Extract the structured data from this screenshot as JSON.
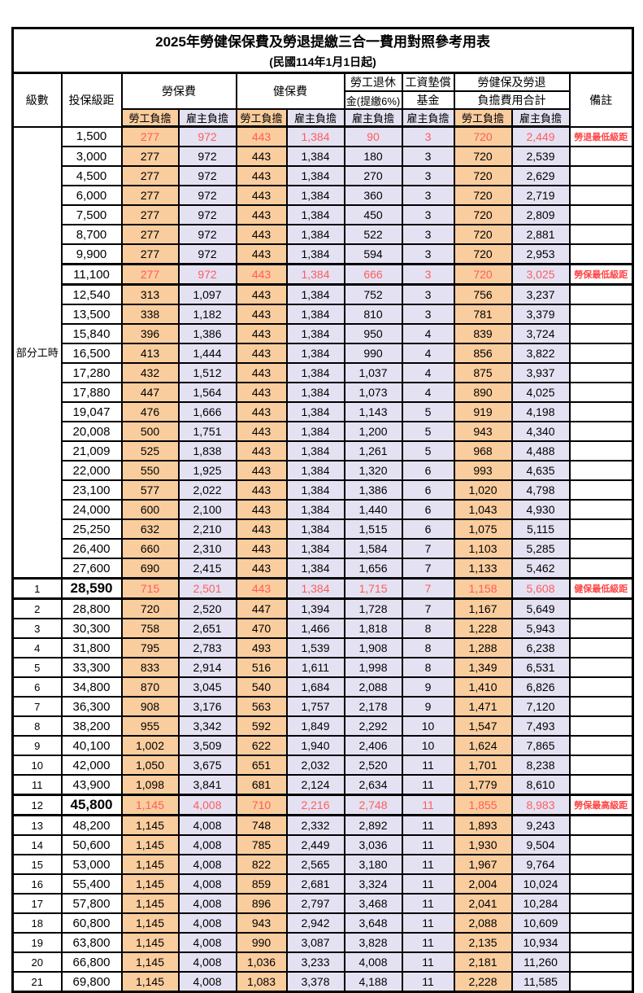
{
  "title": "2025年勞健保保費及勞退提繳三合一費用對照參考用表",
  "subtitle": "(民國114年1月1日起)",
  "colors": {
    "employee_column_bg": "#FACD9E",
    "employer_column_bg": "#E4E2F2",
    "highlight_text": "#FF5C5C",
    "remark_text": "#FF4545",
    "border": "#000000"
  },
  "header": {
    "level": "級數",
    "bracket": "投保級距",
    "labor_insurance": "勞保費",
    "health_insurance": "健保費",
    "pension_line1": "勞工退休",
    "pension_line2": "金(提繳6%)",
    "wage_fund_line1": "工資墊償",
    "wage_fund_line2": "基金",
    "total_line1": "勞健保及勞退",
    "total_line2": "負擔費用合計",
    "remark": "備註",
    "employee": "勞工負擔",
    "employer": "雇主負擔"
  },
  "part_time_label": "部分工時",
  "rows": [
    {
      "level": "",
      "bracket": "1,500",
      "labor_emp": "277",
      "labor_er": "972",
      "health_emp": "443",
      "health_er": "1,384",
      "pension": "90",
      "fund": "3",
      "total_emp": "720",
      "total_er": "2,449",
      "remark": "勞退最低級距",
      "hl": true,
      "thick": false,
      "big": false
    },
    {
      "level": "",
      "bracket": "3,000",
      "labor_emp": "277",
      "labor_er": "972",
      "health_emp": "443",
      "health_er": "1,384",
      "pension": "180",
      "fund": "3",
      "total_emp": "720",
      "total_er": "2,539",
      "remark": "",
      "hl": false,
      "thick": false,
      "big": false
    },
    {
      "level": "",
      "bracket": "4,500",
      "labor_emp": "277",
      "labor_er": "972",
      "health_emp": "443",
      "health_er": "1,384",
      "pension": "270",
      "fund": "3",
      "total_emp": "720",
      "total_er": "2,629",
      "remark": "",
      "hl": false,
      "thick": false,
      "big": false
    },
    {
      "level": "",
      "bracket": "6,000",
      "labor_emp": "277",
      "labor_er": "972",
      "health_emp": "443",
      "health_er": "1,384",
      "pension": "360",
      "fund": "3",
      "total_emp": "720",
      "total_er": "2,719",
      "remark": "",
      "hl": false,
      "thick": false,
      "big": false
    },
    {
      "level": "",
      "bracket": "7,500",
      "labor_emp": "277",
      "labor_er": "972",
      "health_emp": "443",
      "health_er": "1,384",
      "pension": "450",
      "fund": "3",
      "total_emp": "720",
      "total_er": "2,809",
      "remark": "",
      "hl": false,
      "thick": false,
      "big": false
    },
    {
      "level": "",
      "bracket": "8,700",
      "labor_emp": "277",
      "labor_er": "972",
      "health_emp": "443",
      "health_er": "1,384",
      "pension": "522",
      "fund": "3",
      "total_emp": "720",
      "total_er": "2,881",
      "remark": "",
      "hl": false,
      "thick": false,
      "big": false
    },
    {
      "level": "",
      "bracket": "9,900",
      "labor_emp": "277",
      "labor_er": "972",
      "health_emp": "443",
      "health_er": "1,384",
      "pension": "594",
      "fund": "3",
      "total_emp": "720",
      "total_er": "2,953",
      "remark": "",
      "hl": false,
      "thick": false,
      "big": false
    },
    {
      "level": "",
      "bracket": "11,100",
      "labor_emp": "277",
      "labor_er": "972",
      "health_emp": "443",
      "health_er": "1,384",
      "pension": "666",
      "fund": "3",
      "total_emp": "720",
      "total_er": "3,025",
      "remark": "勞保最低級距",
      "hl": true,
      "thick": true,
      "big": false
    },
    {
      "level": "",
      "bracket": "12,540",
      "labor_emp": "313",
      "labor_er": "1,097",
      "health_emp": "443",
      "health_er": "1,384",
      "pension": "752",
      "fund": "3",
      "total_emp": "756",
      "total_er": "3,237",
      "remark": "",
      "hl": false,
      "thick": false,
      "big": false
    },
    {
      "level": "",
      "bracket": "13,500",
      "labor_emp": "338",
      "labor_er": "1,182",
      "health_emp": "443",
      "health_er": "1,384",
      "pension": "810",
      "fund": "3",
      "total_emp": "781",
      "total_er": "3,379",
      "remark": "",
      "hl": false,
      "thick": false,
      "big": false
    },
    {
      "level": "",
      "bracket": "15,840",
      "labor_emp": "396",
      "labor_er": "1,386",
      "health_emp": "443",
      "health_er": "1,384",
      "pension": "950",
      "fund": "4",
      "total_emp": "839",
      "total_er": "3,724",
      "remark": "",
      "hl": false,
      "thick": false,
      "big": false
    },
    {
      "level": "",
      "bracket": "16,500",
      "labor_emp": "413",
      "labor_er": "1,444",
      "health_emp": "443",
      "health_er": "1,384",
      "pension": "990",
      "fund": "4",
      "total_emp": "856",
      "total_er": "3,822",
      "remark": "",
      "hl": false,
      "thick": false,
      "big": false
    },
    {
      "level": "",
      "bracket": "17,280",
      "labor_emp": "432",
      "labor_er": "1,512",
      "health_emp": "443",
      "health_er": "1,384",
      "pension": "1,037",
      "fund": "4",
      "total_emp": "875",
      "total_er": "3,937",
      "remark": "",
      "hl": false,
      "thick": false,
      "big": false
    },
    {
      "level": "",
      "bracket": "17,880",
      "labor_emp": "447",
      "labor_er": "1,564",
      "health_emp": "443",
      "health_er": "1,384",
      "pension": "1,073",
      "fund": "4",
      "total_emp": "890",
      "total_er": "4,025",
      "remark": "",
      "hl": false,
      "thick": false,
      "big": false
    },
    {
      "level": "",
      "bracket": "19,047",
      "labor_emp": "476",
      "labor_er": "1,666",
      "health_emp": "443",
      "health_er": "1,384",
      "pension": "1,143",
      "fund": "5",
      "total_emp": "919",
      "total_er": "4,198",
      "remark": "",
      "hl": false,
      "thick": false,
      "big": false
    },
    {
      "level": "",
      "bracket": "20,008",
      "labor_emp": "500",
      "labor_er": "1,751",
      "health_emp": "443",
      "health_er": "1,384",
      "pension": "1,200",
      "fund": "5",
      "total_emp": "943",
      "total_er": "4,340",
      "remark": "",
      "hl": false,
      "thick": false,
      "big": false
    },
    {
      "level": "",
      "bracket": "21,009",
      "labor_emp": "525",
      "labor_er": "1,838",
      "health_emp": "443",
      "health_er": "1,384",
      "pension": "1,261",
      "fund": "5",
      "total_emp": "968",
      "total_er": "4,488",
      "remark": "",
      "hl": false,
      "thick": false,
      "big": false
    },
    {
      "level": "",
      "bracket": "22,000",
      "labor_emp": "550",
      "labor_er": "1,925",
      "health_emp": "443",
      "health_er": "1,384",
      "pension": "1,320",
      "fund": "6",
      "total_emp": "993",
      "total_er": "4,635",
      "remark": "",
      "hl": false,
      "thick": false,
      "big": false
    },
    {
      "level": "",
      "bracket": "23,100",
      "labor_emp": "577",
      "labor_er": "2,022",
      "health_emp": "443",
      "health_er": "1,384",
      "pension": "1,386",
      "fund": "6",
      "total_emp": "1,020",
      "total_er": "4,798",
      "remark": "",
      "hl": false,
      "thick": false,
      "big": false
    },
    {
      "level": "",
      "bracket": "24,000",
      "labor_emp": "600",
      "labor_er": "2,100",
      "health_emp": "443",
      "health_er": "1,384",
      "pension": "1,440",
      "fund": "6",
      "total_emp": "1,043",
      "total_er": "4,930",
      "remark": "",
      "hl": false,
      "thick": false,
      "big": false
    },
    {
      "level": "",
      "bracket": "25,250",
      "labor_emp": "632",
      "labor_er": "2,210",
      "health_emp": "443",
      "health_er": "1,384",
      "pension": "1,515",
      "fund": "6",
      "total_emp": "1,075",
      "total_er": "5,115",
      "remark": "",
      "hl": false,
      "thick": false,
      "big": false
    },
    {
      "level": "",
      "bracket": "26,400",
      "labor_emp": "660",
      "labor_er": "2,310",
      "health_emp": "443",
      "health_er": "1,384",
      "pension": "1,584",
      "fund": "7",
      "total_emp": "1,103",
      "total_er": "5,285",
      "remark": "",
      "hl": false,
      "thick": false,
      "big": false
    },
    {
      "level": "",
      "bracket": "27,600",
      "labor_emp": "690",
      "labor_er": "2,415",
      "health_emp": "443",
      "health_er": "1,384",
      "pension": "1,656",
      "fund": "7",
      "total_emp": "1,133",
      "total_er": "5,462",
      "remark": "",
      "hl": false,
      "thick": false,
      "big": false
    },
    {
      "level": "1",
      "bracket": "28,590",
      "labor_emp": "715",
      "labor_er": "2,501",
      "health_emp": "443",
      "health_er": "1,384",
      "pension": "1,715",
      "fund": "7",
      "total_emp": "1,158",
      "total_er": "5,608",
      "remark": "健保最低級距",
      "hl": true,
      "thick": true,
      "big": true
    },
    {
      "level": "2",
      "bracket": "28,800",
      "labor_emp": "720",
      "labor_er": "2,520",
      "health_emp": "447",
      "health_er": "1,394",
      "pension": "1,728",
      "fund": "7",
      "total_emp": "1,167",
      "total_er": "5,649",
      "remark": "",
      "hl": false,
      "thick": false,
      "big": false
    },
    {
      "level": "3",
      "bracket": "30,300",
      "labor_emp": "758",
      "labor_er": "2,651",
      "health_emp": "470",
      "health_er": "1,466",
      "pension": "1,818",
      "fund": "8",
      "total_emp": "1,228",
      "total_er": "5,943",
      "remark": "",
      "hl": false,
      "thick": false,
      "big": false
    },
    {
      "level": "4",
      "bracket": "31,800",
      "labor_emp": "795",
      "labor_er": "2,783",
      "health_emp": "493",
      "health_er": "1,539",
      "pension": "1,908",
      "fund": "8",
      "total_emp": "1,288",
      "total_er": "6,238",
      "remark": "",
      "hl": false,
      "thick": false,
      "big": false
    },
    {
      "level": "5",
      "bracket": "33,300",
      "labor_emp": "833",
      "labor_er": "2,914",
      "health_emp": "516",
      "health_er": "1,611",
      "pension": "1,998",
      "fund": "8",
      "total_emp": "1,349",
      "total_er": "6,531",
      "remark": "",
      "hl": false,
      "thick": false,
      "big": false
    },
    {
      "level": "6",
      "bracket": "34,800",
      "labor_emp": "870",
      "labor_er": "3,045",
      "health_emp": "540",
      "health_er": "1,684",
      "pension": "2,088",
      "fund": "9",
      "total_emp": "1,410",
      "total_er": "6,826",
      "remark": "",
      "hl": false,
      "thick": false,
      "big": false
    },
    {
      "level": "7",
      "bracket": "36,300",
      "labor_emp": "908",
      "labor_er": "3,176",
      "health_emp": "563",
      "health_er": "1,757",
      "pension": "2,178",
      "fund": "9",
      "total_emp": "1,471",
      "total_er": "7,120",
      "remark": "",
      "hl": false,
      "thick": false,
      "big": false
    },
    {
      "level": "8",
      "bracket": "38,200",
      "labor_emp": "955",
      "labor_er": "3,342",
      "health_emp": "592",
      "health_er": "1,849",
      "pension": "2,292",
      "fund": "10",
      "total_emp": "1,547",
      "total_er": "7,493",
      "remark": "",
      "hl": false,
      "thick": false,
      "big": false
    },
    {
      "level": "9",
      "bracket": "40,100",
      "labor_emp": "1,002",
      "labor_er": "3,509",
      "health_emp": "622",
      "health_er": "1,940",
      "pension": "2,406",
      "fund": "10",
      "total_emp": "1,624",
      "total_er": "7,865",
      "remark": "",
      "hl": false,
      "thick": false,
      "big": false
    },
    {
      "level": "10",
      "bracket": "42,000",
      "labor_emp": "1,050",
      "labor_er": "3,675",
      "health_emp": "651",
      "health_er": "2,032",
      "pension": "2,520",
      "fund": "11",
      "total_emp": "1,701",
      "total_er": "8,238",
      "remark": "",
      "hl": false,
      "thick": false,
      "big": false
    },
    {
      "level": "11",
      "bracket": "43,900",
      "labor_emp": "1,098",
      "labor_er": "3,841",
      "health_emp": "681",
      "health_er": "2,124",
      "pension": "2,634",
      "fund": "11",
      "total_emp": "1,779",
      "total_er": "8,610",
      "remark": "",
      "hl": false,
      "thick": false,
      "big": false
    },
    {
      "level": "12",
      "bracket": "45,800",
      "labor_emp": "1,145",
      "labor_er": "4,008",
      "health_emp": "710",
      "health_er": "2,216",
      "pension": "2,748",
      "fund": "11",
      "total_emp": "1,855",
      "total_er": "8,983",
      "remark": "勞保最高級距",
      "hl": true,
      "thick": true,
      "big": true
    },
    {
      "level": "13",
      "bracket": "48,200",
      "labor_emp": "1,145",
      "labor_er": "4,008",
      "health_emp": "748",
      "health_er": "2,332",
      "pension": "2,892",
      "fund": "11",
      "total_emp": "1,893",
      "total_er": "9,243",
      "remark": "",
      "hl": false,
      "thick": false,
      "big": false
    },
    {
      "level": "14",
      "bracket": "50,600",
      "labor_emp": "1,145",
      "labor_er": "4,008",
      "health_emp": "785",
      "health_er": "2,449",
      "pension": "3,036",
      "fund": "11",
      "total_emp": "1,930",
      "total_er": "9,504",
      "remark": "",
      "hl": false,
      "thick": false,
      "big": false
    },
    {
      "level": "15",
      "bracket": "53,000",
      "labor_emp": "1,145",
      "labor_er": "4,008",
      "health_emp": "822",
      "health_er": "2,565",
      "pension": "3,180",
      "fund": "11",
      "total_emp": "1,967",
      "total_er": "9,764",
      "remark": "",
      "hl": false,
      "thick": false,
      "big": false
    },
    {
      "level": "16",
      "bracket": "55,400",
      "labor_emp": "1,145",
      "labor_er": "4,008",
      "health_emp": "859",
      "health_er": "2,681",
      "pension": "3,324",
      "fund": "11",
      "total_emp": "2,004",
      "total_er": "10,024",
      "remark": "",
      "hl": false,
      "thick": false,
      "big": false
    },
    {
      "level": "17",
      "bracket": "57,800",
      "labor_emp": "1,145",
      "labor_er": "4,008",
      "health_emp": "896",
      "health_er": "2,797",
      "pension": "3,468",
      "fund": "11",
      "total_emp": "2,041",
      "total_er": "10,284",
      "remark": "",
      "hl": false,
      "thick": false,
      "big": false
    },
    {
      "level": "18",
      "bracket": "60,800",
      "labor_emp": "1,145",
      "labor_er": "4,008",
      "health_emp": "943",
      "health_er": "2,942",
      "pension": "3,648",
      "fund": "11",
      "total_emp": "2,088",
      "total_er": "10,609",
      "remark": "",
      "hl": false,
      "thick": false,
      "big": false
    },
    {
      "level": "19",
      "bracket": "63,800",
      "labor_emp": "1,145",
      "labor_er": "4,008",
      "health_emp": "990",
      "health_er": "3,087",
      "pension": "3,828",
      "fund": "11",
      "total_emp": "2,135",
      "total_er": "10,934",
      "remark": "",
      "hl": false,
      "thick": false,
      "big": false
    },
    {
      "level": "20",
      "bracket": "66,800",
      "labor_emp": "1,145",
      "labor_er": "4,008",
      "health_emp": "1,036",
      "health_er": "3,233",
      "pension": "4,008",
      "fund": "11",
      "total_emp": "2,181",
      "total_er": "11,260",
      "remark": "",
      "hl": false,
      "thick": false,
      "big": false
    },
    {
      "level": "21",
      "bracket": "69,800",
      "labor_emp": "1,145",
      "labor_er": "4,008",
      "health_emp": "1,083",
      "health_er": "3,378",
      "pension": "4,188",
      "fund": "11",
      "total_emp": "2,228",
      "total_er": "11,585",
      "remark": "",
      "hl": false,
      "thick": false,
      "big": false
    }
  ]
}
